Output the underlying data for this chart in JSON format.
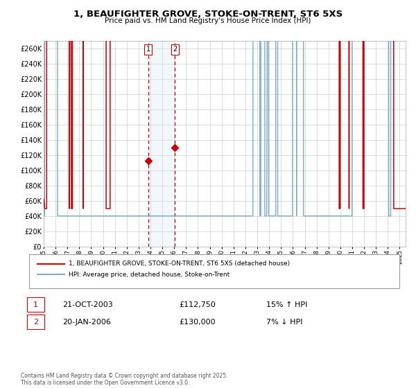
{
  "title": "1, BEAUFIGHTER GROVE, STOKE-ON-TRENT, ST6 5XS",
  "subtitle": "Price paid vs. HM Land Registry's House Price Index (HPI)",
  "background_color": "#ffffff",
  "grid_color": "#cccccc",
  "plot_bg_color": "#ffffff",
  "red_line_color": "#cc0000",
  "blue_line_color": "#7aadcc",
  "shade_color": "#d8eaf5",
  "dashed_line_color": "#cc0000",
  "legend_entry1": "1, BEAUFIGHTER GROVE, STOKE-ON-TRENT, ST6 5XS (detached house)",
  "legend_entry2": "HPI: Average price, detached house, Stoke-on-Trent",
  "table_row1_num": "1",
  "table_row1_date": "21-OCT-2003",
  "table_row1_price": "£112,750",
  "table_row1_hpi": "15% ↑ HPI",
  "table_row2_num": "2",
  "table_row2_date": "20-JAN-2006",
  "table_row2_price": "£130,000",
  "table_row2_hpi": "7% ↓ HPI",
  "footer": "Contains HM Land Registry data © Crown copyright and database right 2025.\nThis data is licensed under the Open Government Licence v3.0.",
  "ylim": [
    0,
    270000
  ],
  "ytick_step": 20000,
  "sale1_x": 2003.81,
  "sale1_y": 112750,
  "sale2_x": 2006.05,
  "sale2_y": 130000,
  "shade_x1": 2003.81,
  "shade_x2": 2006.05,
  "xmin": 1995.0,
  "xmax": 2025.5
}
